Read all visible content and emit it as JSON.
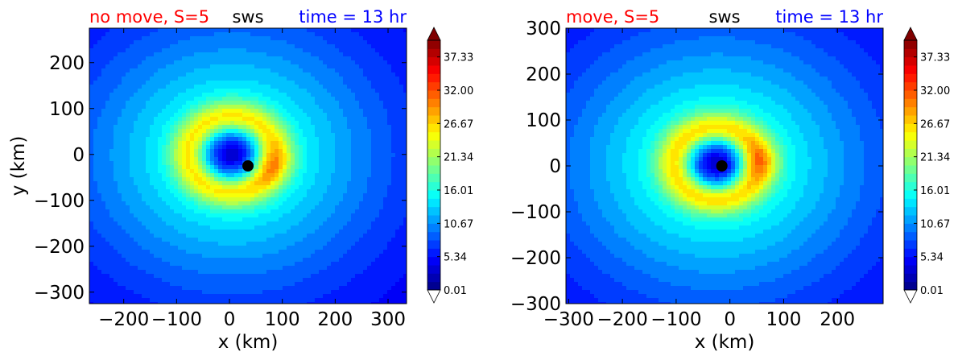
{
  "colors": {
    "left_title": "#ff0000",
    "center_title": "#000000",
    "right_title": "#0000ff"
  },
  "chart_data": [
    {
      "type": "heatmap",
      "subtype": "filled-contour",
      "title_left": "no move, S=5",
      "title_center": "sws",
      "title_right": "time = 13 hr",
      "xlabel": "x (km)",
      "ylabel": "y (km)",
      "xlim": [
        -265,
        335
      ],
      "ylim": [
        -325,
        275
      ],
      "xticks": [
        -200,
        -100,
        0,
        100,
        200,
        300
      ],
      "xtick_labels": [
        "−200",
        "−100",
        "0",
        "100",
        "200",
        "300"
      ],
      "yticks": [
        -300,
        -200,
        -100,
        0,
        100,
        200
      ],
      "ytick_labels": [
        "−300",
        "−200",
        "−100",
        "0",
        "100",
        "200"
      ],
      "colormap": "jet",
      "levels": [
        0.01,
        40.0
      ],
      "colorbar_ticks": [
        0.01,
        5.34,
        10.67,
        16.01,
        21.34,
        26.67,
        32.0,
        37.33
      ],
      "colorbar_tick_labels": [
        "0.01",
        "5.34",
        "10.67",
        "16.01",
        "21.34",
        "26.67",
        "32.00",
        "37.33"
      ],
      "field": {
        "center": [
          5,
          0
        ],
        "peak_wind": 24,
        "radius_of_max_wind": 80,
        "eye_wind": 3,
        "eye_radius": 35,
        "outer_decay_km": 230,
        "asymmetry": [
          60,
          -20
        ]
      },
      "marker": {
        "x": 35,
        "y": -25
      }
    },
    {
      "type": "heatmap",
      "subtype": "filled-contour",
      "title_left": "move, S=5",
      "title_center": "sws",
      "title_right": "time = 13 hr",
      "xlabel": "x (km)",
      "ylabel": "",
      "xlim": [
        -305,
        285
      ],
      "ylim": [
        -300,
        300
      ],
      "xticks": [
        -300,
        -200,
        -100,
        0,
        100,
        200
      ],
      "xtick_labels": [
        "−300",
        "−200",
        "−100",
        "0",
        "100",
        "200"
      ],
      "yticks": [
        -300,
        -200,
        -100,
        0,
        100,
        200,
        300
      ],
      "ytick_labels": [
        "−300",
        "−200",
        "−100",
        "0",
        "100",
        "200",
        "300"
      ],
      "colormap": "jet",
      "levels": [
        0.01,
        40.0
      ],
      "colorbar_ticks": [
        0.01,
        5.34,
        10.67,
        16.01,
        21.34,
        26.67,
        32.0,
        37.33
      ],
      "colorbar_tick_labels": [
        "0.01",
        "5.34",
        "10.67",
        "16.01",
        "21.34",
        "26.67",
        "32.00",
        "37.33"
      ],
      "field": {
        "center": [
          -25,
          5
        ],
        "peak_wind": 25,
        "radius_of_max_wind": 75,
        "eye_wind": 3,
        "eye_radius": 35,
        "outer_decay_km": 240,
        "asymmetry": [
          70,
          5
        ]
      },
      "marker": {
        "x": -15,
        "y": 0
      }
    }
  ]
}
